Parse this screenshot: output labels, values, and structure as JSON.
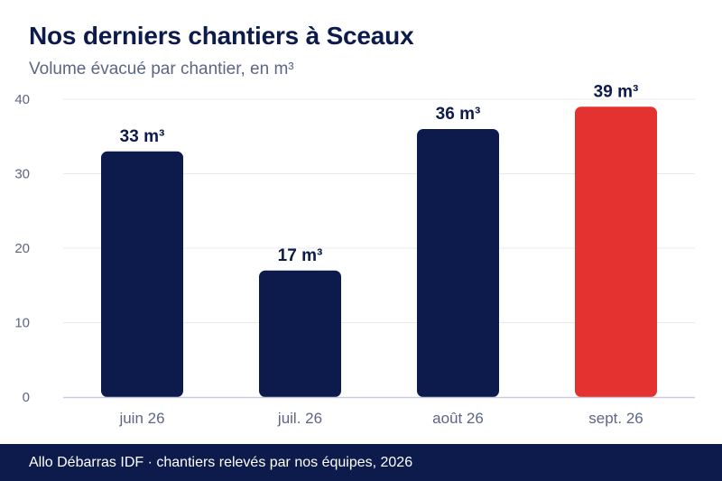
{
  "title": "Nos derniers chantiers à Sceaux",
  "subtitle": "Volume évacué par chantier, en m³",
  "footer": "Allo Débarras IDF · chantiers relevés par nos équipes, 2026",
  "colors": {
    "bar": "#0d1b4c",
    "highlight": "#e3322f",
    "grid": "#e9eaee",
    "axis": "#c9cbe0",
    "tick": "#5c6685",
    "label": "#0d1b4c"
  },
  "chart_data": {
    "type": "bar",
    "categories": [
      "juin 26",
      "juil. 26",
      "août 26",
      "sept. 26"
    ],
    "values": [
      33,
      17,
      36,
      39
    ],
    "value_labels": [
      "33 m³",
      "17 m³",
      "36 m³",
      "39 m³"
    ],
    "highlight_index": 3,
    "yticks": [
      "0",
      "10",
      "20",
      "30",
      "40"
    ],
    "ylim": [
      0,
      40
    ],
    "grid": true
  }
}
